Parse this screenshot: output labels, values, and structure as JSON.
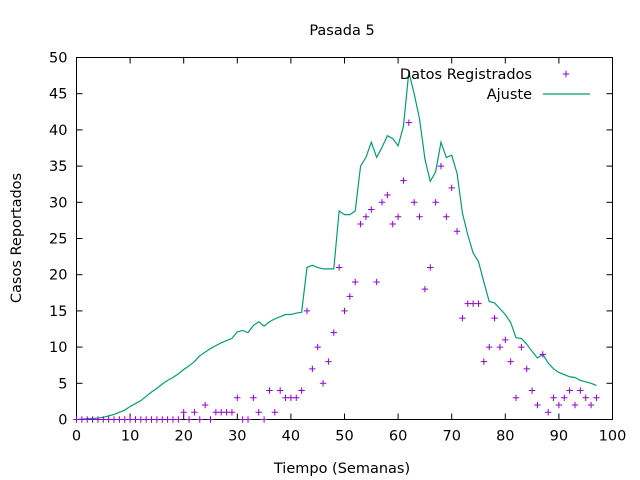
{
  "chart_data": {
    "type": "scatter",
    "title": "Pasada 5",
    "xlabel": "Tiempo (Semanas)",
    "ylabel": "Casos Reportados",
    "xlim": [
      0,
      100
    ],
    "ylim": [
      0,
      50
    ],
    "xticks": [
      0,
      10,
      20,
      30,
      40,
      50,
      60,
      70,
      80,
      90,
      100
    ],
    "yticks": [
      0,
      5,
      10,
      15,
      20,
      25,
      30,
      35,
      40,
      45,
      50
    ],
    "grid": false,
    "legend_position": "top-right",
    "series": [
      {
        "name": "Datos Registrados",
        "kind": "points",
        "color": "#9400d3",
        "x": [
          0,
          1,
          2,
          3,
          4,
          5,
          6,
          7,
          8,
          9,
          10,
          11,
          12,
          13,
          14,
          15,
          16,
          17,
          18,
          19,
          20,
          21,
          22,
          23,
          24,
          25,
          26,
          27,
          28,
          29,
          30,
          31,
          32,
          33,
          34,
          35,
          36,
          37,
          38,
          39,
          40,
          41,
          42,
          43,
          44,
          45,
          46,
          47,
          48,
          49,
          50,
          51,
          52,
          53,
          54,
          55,
          56,
          57,
          58,
          59,
          60,
          61,
          62,
          63,
          64,
          65,
          66,
          67,
          68,
          69,
          70,
          71,
          72,
          73,
          74,
          75,
          76,
          77,
          78,
          79,
          80,
          81,
          82,
          83,
          84,
          85,
          86,
          87,
          88,
          89,
          90,
          91,
          92,
          93,
          94,
          95,
          96,
          97
        ],
        "y": [
          0,
          0,
          0,
          0,
          0,
          0,
          0,
          0,
          0,
          0,
          0,
          0,
          0,
          0,
          0,
          0,
          0,
          0,
          0,
          0,
          1,
          0,
          1,
          0,
          2,
          0,
          1,
          1,
          1,
          1,
          3,
          0,
          0,
          3,
          1,
          0,
          4,
          1,
          4,
          3,
          3,
          3,
          4,
          15,
          7,
          10,
          5,
          8,
          12,
          21,
          15,
          17,
          19,
          27,
          28,
          29,
          19,
          30,
          31,
          27,
          28,
          33,
          41,
          30,
          28,
          18,
          21,
          30,
          35,
          28,
          32,
          26,
          14,
          16,
          16,
          16,
          8,
          10,
          14,
          10,
          11,
          8,
          3,
          10,
          7,
          4,
          2,
          9,
          1,
          3,
          2,
          3,
          4,
          2,
          4,
          3,
          2,
          3
        ]
      },
      {
        "name": "Ajuste",
        "kind": "line",
        "color": "#009e73",
        "x": [
          0,
          1,
          2,
          3,
          4,
          5,
          6,
          7,
          8,
          9,
          10,
          11,
          12,
          13,
          14,
          15,
          16,
          17,
          18,
          19,
          20,
          21,
          22,
          23,
          24,
          25,
          26,
          27,
          28,
          29,
          30,
          31,
          32,
          33,
          34,
          35,
          36,
          37,
          38,
          39,
          40,
          41,
          42,
          43,
          44,
          45,
          46,
          47,
          48,
          49,
          50,
          51,
          52,
          53,
          54,
          55,
          56,
          57,
          58,
          59,
          60,
          61,
          62,
          63,
          64,
          65,
          66,
          67,
          68,
          69,
          70,
          71,
          72,
          73,
          74,
          75,
          76,
          77,
          78,
          79,
          80,
          81,
          82,
          83,
          84,
          85,
          86,
          87,
          88,
          89,
          90,
          91,
          92,
          93,
          94,
          95,
          96,
          97
        ],
        "y": [
          0,
          0.05,
          0.1,
          0.15,
          0.2,
          0.3,
          0.5,
          0.7,
          1.0,
          1.3,
          1.8,
          2.2,
          2.6,
          3.2,
          3.8,
          4.3,
          4.9,
          5.4,
          5.8,
          6.3,
          6.9,
          7.4,
          8.0,
          8.8,
          9.3,
          9.8,
          10.2,
          10.6,
          10.9,
          11.2,
          12.1,
          12.3,
          12.0,
          13.0,
          13.5,
          12.9,
          13.5,
          13.9,
          14.2,
          14.5,
          14.5,
          14.7,
          14.8,
          21.0,
          21.3,
          21.0,
          20.8,
          20.8,
          20.8,
          28.8,
          28.3,
          28.3,
          28.8,
          35.0,
          36.2,
          38.3,
          36.2,
          37.6,
          39.2,
          38.8,
          37.8,
          40.5,
          48.0,
          45.0,
          41.5,
          36.0,
          32.9,
          34.2,
          38.3,
          36.2,
          36.5,
          34.0,
          28.5,
          25.5,
          23.0,
          21.8,
          19.0,
          16.3,
          16.1,
          15.3,
          14.5,
          13.4,
          11.3,
          11.2,
          10.4,
          9.4,
          8.5,
          9.0,
          7.8,
          7.0,
          6.5,
          6.2,
          5.9,
          5.8,
          5.4,
          5.2,
          5.0,
          4.7
        ]
      }
    ]
  }
}
